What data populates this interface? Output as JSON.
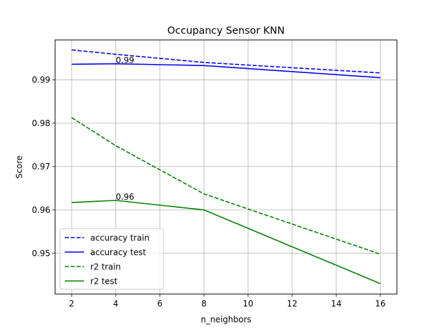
{
  "chart_data": {
    "type": "line",
    "title": "Occupancy Sensor KNN",
    "xlabel": "n_neighbors",
    "ylabel": "Score",
    "xlim": [
      1.25,
      16.75
    ],
    "ylim": [
      0.9406,
      0.9992
    ],
    "x_ticks": [
      2,
      4,
      6,
      8,
      10,
      12,
      14,
      16
    ],
    "y_ticks": [
      0.95,
      0.96,
      0.97,
      0.98,
      0.99
    ],
    "y_tick_labels": [
      "0.95",
      "0.96",
      "0.97",
      "0.98",
      "0.99"
    ],
    "grid": true,
    "legend_position": "lower-left",
    "x": [
      2,
      4,
      8,
      16
    ],
    "series": [
      {
        "name": "accuracy train",
        "values": [
          0.9969,
          0.9959,
          0.994,
          0.9916
        ],
        "color": "#0000ff",
        "dash": "dashed"
      },
      {
        "name": "accuracy test",
        "values": [
          0.9936,
          0.9937,
          0.9933,
          0.9905
        ],
        "color": "#0000ff",
        "dash": "solid"
      },
      {
        "name": "r2 train",
        "values": [
          0.9813,
          0.9748,
          0.9637,
          0.9498
        ],
        "color": "#008000",
        "dash": "dashed"
      },
      {
        "name": "r2 test",
        "values": [
          0.9617,
          0.9622,
          0.96,
          0.943
        ],
        "color": "#008000",
        "dash": "solid"
      }
    ],
    "annotations": [
      {
        "text": "0.99",
        "x": 4,
        "y": 0.9937
      },
      {
        "text": "0.96",
        "x": 4,
        "y": 0.9622
      }
    ]
  }
}
